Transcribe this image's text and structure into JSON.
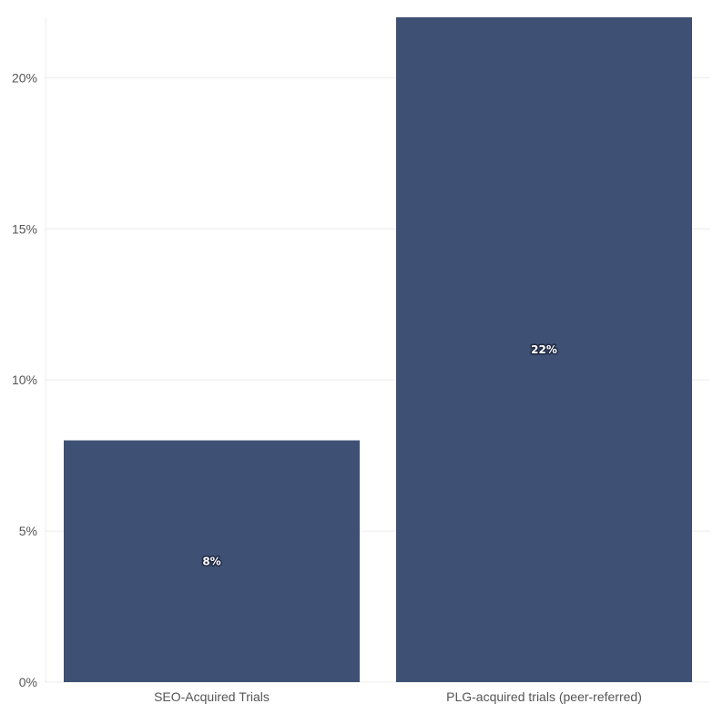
{
  "chart_data": {
    "type": "bar",
    "categories": [
      "SEO-Acquired Trials",
      "PLG-acquired trials (peer-referred)"
    ],
    "series": [
      {
        "values": [
          8,
          22
        ],
        "labels": [
          "8%",
          "22%"
        ]
      }
    ],
    "ylim": [
      0,
      22
    ],
    "yticks": [
      0,
      5,
      10,
      15,
      20
    ],
    "ytick_labels": [
      "0%",
      "5%",
      "10%",
      "15%",
      "20%"
    ],
    "bar_color": "#3e5074",
    "grid": true,
    "title": "",
    "xlabel": "",
    "ylabel": ""
  }
}
